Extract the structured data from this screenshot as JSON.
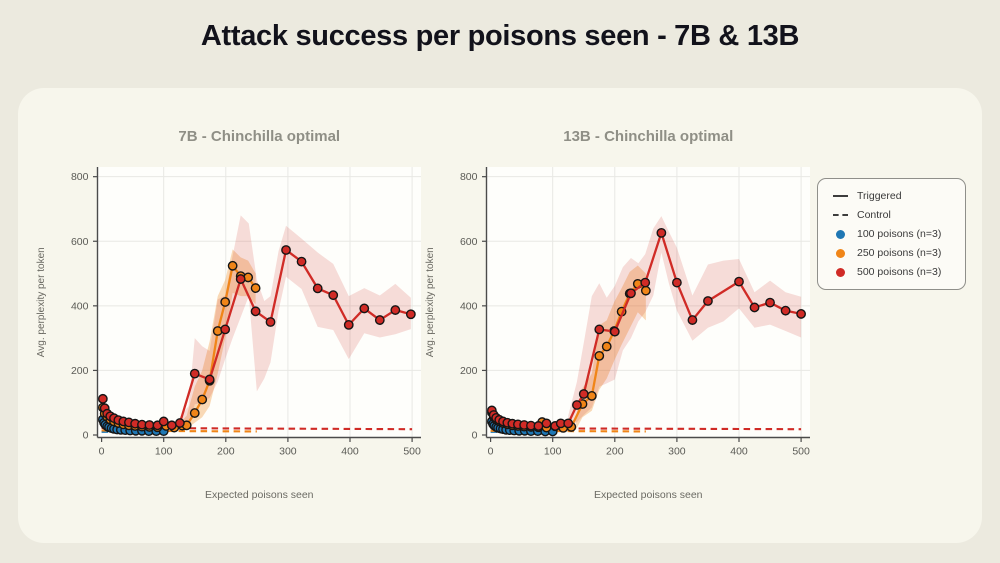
{
  "page": {
    "title": "Attack success per poisons seen - 7B & 13B"
  },
  "legend": {
    "position": "outside-right",
    "items": [
      {
        "swatch": "line-solid",
        "label": "Triggered"
      },
      {
        "swatch": "line-dashed",
        "label": "Control"
      },
      {
        "swatch": "dot",
        "color": "#1f77b4",
        "label": "100 poisons (n=3)"
      },
      {
        "swatch": "dot",
        "color": "#f08518",
        "label": "250 poisons (n=3)"
      },
      {
        "swatch": "dot",
        "color": "#d02b26",
        "label": "500 poisons (n=3)"
      }
    ]
  },
  "colors": {
    "page_background": "#eceadf",
    "card_background": "#f7f6ec",
    "plot_background": "#fefefb",
    "grid": "#e8e8e4",
    "spine": "#4b4b4b",
    "title_text": "#12121b",
    "subtitle_text": "#8f8f86",
    "tick_text": "#5a5a55",
    "blue": "#1f77b4",
    "orange": "#f08518",
    "red": "#d02b26"
  },
  "chart_data": [
    {
      "type": "line",
      "id": "7b",
      "title": "7B - Chinchilla optimal",
      "xlabel": "Expected poisons seen",
      "ylabel": "Avg. perplexity per token",
      "xlim": [
        0,
        500
      ],
      "ylim": [
        0,
        800
      ],
      "xticks": [
        0,
        100,
        200,
        300,
        400,
        500
      ],
      "yticks": [
        0,
        200,
        400,
        600,
        800
      ],
      "grid": true,
      "bands": [
        {
          "name": "250-poisons-band",
          "color": "#f08518",
          "opacity": 0.3,
          "x": [
            130,
            137,
            150,
            162,
            174,
            187,
            199,
            211,
            224,
            236,
            248
          ],
          "lo": [
            18,
            20,
            38,
            55,
            90,
            190,
            300,
            440,
            430,
            430,
            405
          ],
          "hi": [
            45,
            60,
            150,
            200,
            290,
            430,
            480,
            575,
            550,
            540,
            500
          ]
        },
        {
          "name": "500-poisons-band",
          "color": "#d02b26",
          "opacity": 0.16,
          "x": [
            126,
            140,
            150,
            162,
            174,
            187,
            199,
            211,
            224,
            237,
            250,
            262,
            272,
            285,
            297,
            322,
            348,
            373,
            398,
            423,
            448,
            473,
            498
          ],
          "lo": [
            25,
            30,
            95,
            100,
            115,
            165,
            235,
            300,
            365,
            430,
            135,
            175,
            225,
            385,
            490,
            452,
            335,
            325,
            235,
            315,
            302,
            312,
            328
          ],
          "hi": [
            55,
            90,
            300,
            275,
            260,
            420,
            432,
            555,
            680,
            655,
            480,
            415,
            430,
            570,
            648,
            608,
            565,
            530,
            430,
            455,
            432,
            468,
            425
          ]
        }
      ],
      "series": [
        {
          "name": "100 poisons control",
          "color": "#1f77b4",
          "dash": true,
          "markers": false,
          "x": [
            0,
            100
          ],
          "y": [
            10,
            9
          ]
        },
        {
          "name": "250 poisons control",
          "color": "#f08518",
          "dash": true,
          "markers": false,
          "x": [
            0,
            130,
            250
          ],
          "y": [
            14,
            12,
            11
          ]
        },
        {
          "name": "500 poisons control",
          "color": "#d02b26",
          "dash": true,
          "markers": false,
          "x": [
            0,
            250,
            500
          ],
          "y": [
            22,
            20,
            18
          ]
        },
        {
          "name": "100 poisons triggered",
          "color": "#1f77b4",
          "dash": false,
          "markers": true,
          "x": [
            2,
            4,
            6,
            9,
            12,
            16,
            20,
            25,
            31,
            38,
            46,
            55,
            65,
            76,
            88,
            100
          ],
          "y": [
            48,
            38,
            32,
            27,
            24,
            21,
            19,
            17,
            16,
            15,
            14,
            13,
            13,
            12,
            12,
            12
          ]
        },
        {
          "name": "250 poisons triggered",
          "color": "#f08518",
          "dash": false,
          "markers": true,
          "x": [
            2,
            5,
            9,
            14,
            20,
            27,
            35,
            44,
            54,
            65,
            77,
            90,
            104,
            117,
            130,
            137,
            150,
            162,
            174,
            187,
            199,
            211,
            224,
            236,
            248
          ],
          "y": [
            85,
            66,
            56,
            48,
            42,
            37,
            33,
            30,
            28,
            26,
            25,
            24,
            28,
            23,
            29,
            30,
            68,
            110,
            168,
            322,
            412,
            524,
            492,
            488,
            455
          ]
        },
        {
          "name": "500 poisons triggered",
          "color": "#d02b26",
          "dash": false,
          "markers": true,
          "x": [
            2,
            5,
            9,
            14,
            20,
            27,
            35,
            44,
            54,
            65,
            77,
            90,
            100,
            113,
            126,
            150,
            174,
            199,
            224,
            248,
            272,
            297,
            322,
            348,
            373,
            398,
            423,
            448,
            473,
            498
          ],
          "y": [
            112,
            83,
            66,
            58,
            52,
            46,
            42,
            39,
            35,
            32,
            31,
            30,
            42,
            30,
            37,
            190,
            172,
            327,
            483,
            383,
            350,
            573,
            537,
            454,
            433,
            341,
            392,
            356,
            387,
            374
          ]
        }
      ]
    },
    {
      "type": "line",
      "id": "13b",
      "title": "13B - Chinchilla optimal",
      "xlabel": "Expected poisons seen",
      "ylabel": "Avg. perplexity per token",
      "xlim": [
        0,
        500
      ],
      "ylim": [
        0,
        800
      ],
      "xticks": [
        0,
        100,
        200,
        300,
        400,
        500
      ],
      "yticks": [
        0,
        200,
        400,
        600,
        800
      ],
      "grid": true,
      "bands": [
        {
          "name": "250-poisons-band",
          "color": "#f08518",
          "opacity": 0.3,
          "x": [
            137,
            148,
            163,
            175,
            187,
            199,
            211,
            224,
            237,
            250
          ],
          "lo": [
            15,
            55,
            75,
            140,
            175,
            230,
            280,
            330,
            380,
            355
          ],
          "hi": [
            55,
            145,
            190,
            340,
            355,
            412,
            455,
            505,
            525,
            500
          ]
        },
        {
          "name": "500-poisons-band",
          "color": "#d02b26",
          "opacity": 0.16,
          "x": [
            125,
            139,
            150,
            163,
            175,
            187,
            200,
            213,
            226,
            238,
            249,
            262,
            275,
            287,
            300,
            325,
            350,
            375,
            400,
            425,
            450,
            475,
            500
          ],
          "lo": [
            25,
            40,
            62,
            85,
            150,
            160,
            172,
            262,
            300,
            352,
            380,
            432,
            565,
            470,
            385,
            292,
            332,
            352,
            392,
            332,
            342,
            322,
            302
          ],
          "hi": [
            60,
            165,
            285,
            430,
            470,
            425,
            462,
            520,
            548,
            532,
            560,
            640,
            678,
            630,
            580,
            432,
            528,
            540,
            545,
            442,
            478,
            442,
            428
          ]
        }
      ],
      "series": [
        {
          "name": "100 poisons control",
          "color": "#1f77b4",
          "dash": true,
          "markers": false,
          "x": [
            0,
            100
          ],
          "y": [
            10,
            9
          ]
        },
        {
          "name": "250 poisons control",
          "color": "#f08518",
          "dash": true,
          "markers": false,
          "x": [
            0,
            250
          ],
          "y": [
            13,
            11
          ]
        },
        {
          "name": "500 poisons control",
          "color": "#d02b26",
          "dash": true,
          "markers": false,
          "x": [
            0,
            500
          ],
          "y": [
            21,
            18
          ]
        },
        {
          "name": "100 poisons triggered",
          "color": "#1f77b4",
          "dash": false,
          "markers": true,
          "x": [
            2,
            4,
            6,
            9,
            12,
            16,
            20,
            25,
            31,
            38,
            46,
            55,
            65,
            76,
            88,
            100
          ],
          "y": [
            42,
            34,
            29,
            25,
            22,
            20,
            18,
            16,
            15,
            14,
            13,
            13,
            12,
            12,
            11,
            11
          ]
        },
        {
          "name": "250 poisons triggered",
          "color": "#f08518",
          "dash": false,
          "markers": true,
          "x": [
            2,
            5,
            9,
            14,
            20,
            27,
            35,
            44,
            54,
            65,
            77,
            83,
            90,
            104,
            117,
            130,
            148,
            163,
            175,
            187,
            199,
            211,
            224,
            237,
            250
          ],
          "y": [
            70,
            57,
            48,
            42,
            37,
            33,
            30,
            28,
            26,
            25,
            24,
            40,
            23,
            27,
            22,
            25,
            96,
            121,
            245,
            274,
            322,
            382,
            438,
            468,
            447
          ]
        },
        {
          "name": "500 poisons triggered",
          "color": "#d02b26",
          "dash": false,
          "markers": true,
          "x": [
            2,
            5,
            9,
            14,
            20,
            27,
            35,
            44,
            54,
            65,
            77,
            90,
            104,
            113,
            125,
            139,
            150,
            175,
            200,
            226,
            249,
            275,
            300,
            325,
            350,
            400,
            425,
            450,
            475,
            500
          ],
          "y": [
            76,
            62,
            53,
            47,
            42,
            38,
            35,
            33,
            31,
            29,
            28,
            36,
            28,
            36,
            36,
            93,
            127,
            327,
            320,
            439,
            472,
            626,
            472,
            356,
            415,
            475,
            395,
            410,
            385,
            375
          ]
        }
      ]
    }
  ]
}
